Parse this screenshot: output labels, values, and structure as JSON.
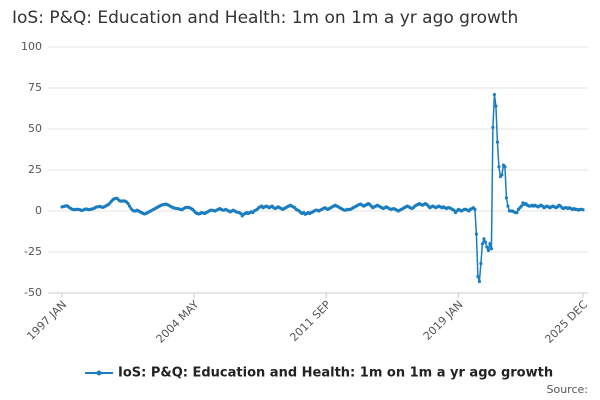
{
  "chart_data": {
    "type": "line",
    "title": "IoS: P&Q: Education and Health: 1m on 1m a yr ago growth",
    "source": "Source:",
    "categories": [
      "1997 JAN",
      null,
      null,
      null,
      null,
      null,
      null,
      null,
      null,
      null,
      null,
      null,
      null,
      null,
      null,
      null,
      null,
      null,
      null,
      null,
      null,
      null,
      null,
      null,
      null,
      null,
      null,
      null,
      null,
      null,
      null,
      null,
      null,
      null,
      null,
      null,
      null,
      null,
      null,
      null,
      null,
      null,
      null,
      null,
      null,
      null,
      null,
      null,
      null,
      null,
      null,
      null,
      null,
      null,
      null,
      null,
      null,
      null,
      null,
      null,
      null,
      null,
      null,
      null,
      null,
      null,
      null,
      null,
      null,
      null,
      null,
      null,
      null,
      null,
      null,
      null,
      null,
      null,
      null,
      null,
      null,
      null,
      null,
      null,
      null,
      null,
      null,
      null,
      "2004 MAY",
      null,
      null,
      null,
      null,
      null,
      null,
      null,
      null,
      null,
      null,
      null,
      null,
      null,
      null,
      null,
      null,
      null,
      null,
      null,
      null,
      null,
      null,
      null,
      null,
      null,
      null,
      null,
      null,
      null,
      null,
      null,
      null,
      null,
      null,
      null,
      null,
      null,
      null,
      null,
      null,
      null,
      null,
      null,
      null,
      null,
      null,
      null,
      null,
      null,
      null,
      null,
      null,
      null,
      null,
      null,
      null,
      null,
      null,
      null,
      null,
      null,
      null,
      null,
      null,
      null,
      null,
      null,
      null,
      null,
      null,
      null,
      null,
      null,
      null,
      null,
      null,
      null,
      null,
      null,
      null,
      null,
      null,
      null,
      null,
      null,
      null,
      null,
      "2011 SEP",
      null,
      null,
      null,
      null,
      null,
      null,
      null,
      null,
      null,
      null,
      null,
      null,
      null,
      null,
      null,
      null,
      null,
      null,
      null,
      null,
      null,
      null,
      null,
      null,
      null,
      null,
      null,
      null,
      null,
      null,
      null,
      null,
      null,
      null,
      null,
      null,
      null,
      null,
      null,
      null,
      null,
      null,
      null,
      null,
      null,
      null,
      null,
      null,
      null,
      null,
      null,
      null,
      null,
      null,
      null,
      null,
      null,
      null,
      null,
      null,
      null,
      null,
      null,
      null,
      null,
      null,
      null,
      null,
      null,
      null,
      null,
      null,
      null,
      null,
      null,
      null,
      null,
      null,
      null,
      null,
      null,
      null,
      null,
      null,
      null,
      null,
      null,
      "2019 JAN",
      null,
      null,
      null,
      null,
      null,
      null,
      null,
      null,
      null,
      null,
      null,
      null,
      null,
      null,
      null,
      null,
      null,
      null,
      null,
      null,
      null,
      null,
      null,
      null,
      null,
      null,
      null,
      null,
      null,
      null,
      null,
      null,
      null,
      null,
      null,
      null,
      null,
      null,
      null,
      null,
      null,
      null,
      null,
      null,
      null,
      null,
      null,
      null,
      null,
      null,
      null,
      null,
      null,
      null,
      null,
      null,
      null,
      null,
      null,
      null,
      null,
      null,
      null,
      null,
      null,
      null,
      null,
      null,
      null,
      null,
      null,
      null,
      null,
      null,
      null,
      null,
      null,
      null,
      null,
      null,
      null,
      null,
      "2025 DEC"
    ],
    "series": [
      {
        "name": "IoS: P&Q: Education and Health: 1m on 1m a yr ago growth",
        "color": "#1a7dc0",
        "values": [
          2.5,
          2.7,
          3,
          3.2,
          2.8,
          2,
          1.5,
          1,
          0.8,
          1,
          1,
          1,
          0.8,
          0.3,
          0.5,
          1,
          1.2,
          1,
          0.8,
          1,
          1.2,
          1.5,
          2,
          2.5,
          2.5,
          2.8,
          2.5,
          2.2,
          2.5,
          3,
          3.5,
          4,
          5,
          6,
          7,
          7.5,
          7.8,
          7.5,
          6.5,
          6,
          6,
          6.2,
          6,
          5.5,
          4.5,
          3,
          1.5,
          0.5,
          0,
          0,
          0.5,
          0,
          -0.5,
          -1,
          -1.5,
          -1.8,
          -1.5,
          -1,
          -0.5,
          0,
          0.5,
          1,
          1.5,
          2,
          2.5,
          3,
          3.5,
          3.8,
          4,
          4.2,
          4,
          3.5,
          3,
          2.5,
          2,
          1.8,
          1.5,
          1.5,
          1.2,
          1,
          0.8,
          1.5,
          2,
          2.2,
          2.2,
          2,
          1.5,
          1,
          0,
          -1,
          -1.5,
          -1.8,
          -1.5,
          -1,
          -1.2,
          -1.5,
          -1,
          -0.5,
          0,
          0.5,
          0.5,
          0.2,
          0,
          0.5,
          1,
          1.5,
          1,
          0.5,
          0.5,
          1,
          0.5,
          0,
          -0.5,
          0,
          0.5,
          0,
          -0.5,
          -0.8,
          -1,
          -1.5,
          -3,
          -2,
          -1.5,
          -1,
          -1.5,
          -1,
          -0.5,
          -1,
          0,
          0.5,
          1,
          2,
          2.5,
          3,
          2,
          2.5,
          3,
          2.5,
          2,
          2.5,
          3,
          2,
          1.5,
          2,
          2.5,
          2,
          1.5,
          1,
          1.5,
          2,
          2.5,
          3,
          3.5,
          3,
          2.5,
          2,
          1,
          0.5,
          0,
          -1,
          -1.5,
          -1,
          -2,
          -1.5,
          -1,
          -1.5,
          -1,
          -0.5,
          0,
          0.5,
          0.5,
          0,
          0.5,
          1,
          1.5,
          2,
          1.5,
          1,
          1.5,
          2,
          2.5,
          3,
          3.5,
          3,
          2.5,
          2,
          1.5,
          1,
          0.5,
          0.5,
          1,
          0.8,
          1,
          1.5,
          2,
          2.5,
          3,
          3.5,
          4,
          4.2,
          3.5,
          3,
          3.5,
          4,
          4.5,
          4,
          3,
          2,
          2.5,
          3,
          3.5,
          3,
          2.5,
          2,
          1.5,
          2,
          2.5,
          2,
          1.5,
          1,
          1.2,
          1.5,
          1,
          0.5,
          0,
          0.5,
          1,
          1.5,
          2,
          2.5,
          3,
          2.5,
          2,
          1.5,
          2,
          3,
          3.5,
          4,
          4.5,
          4,
          3.5,
          4,
          4.5,
          4,
          3,
          2,
          2.5,
          3,
          2.5,
          2,
          2.5,
          3,
          2.5,
          2,
          2.5,
          2,
          1.5,
          2,
          2,
          1.5,
          1,
          0.5,
          -1,
          0,
          1,
          0.5,
          0,
          0.5,
          1,
          1,
          0.5,
          0,
          1,
          1.5,
          2,
          1,
          -14,
          -40,
          -43,
          -32,
          -20,
          -17,
          -19,
          -22,
          -24,
          -20,
          -23,
          51,
          71,
          64,
          42,
          27,
          21,
          22,
          28,
          27,
          8,
          3,
          0,
          0,
          0,
          -0.5,
          -1,
          -1,
          1,
          2,
          3,
          5,
          4,
          4.5,
          3.5,
          3,
          3,
          3.5,
          3,
          3.5,
          3,
          2.5,
          3,
          3.5,
          3,
          2,
          2.5,
          3,
          2.5,
          2,
          2.5,
          3,
          2.5,
          2,
          2.5,
          3.5,
          3,
          2,
          1.5,
          2,
          2,
          1.5,
          2,
          1.5,
          1,
          1.5,
          1,
          1,
          0.5,
          1,
          1,
          0.8
        ]
      }
    ],
    "ylim": [
      -50,
      100
    ],
    "yticks": [
      -50,
      -25,
      0,
      25,
      50,
      75,
      100
    ],
    "grid": true
  }
}
